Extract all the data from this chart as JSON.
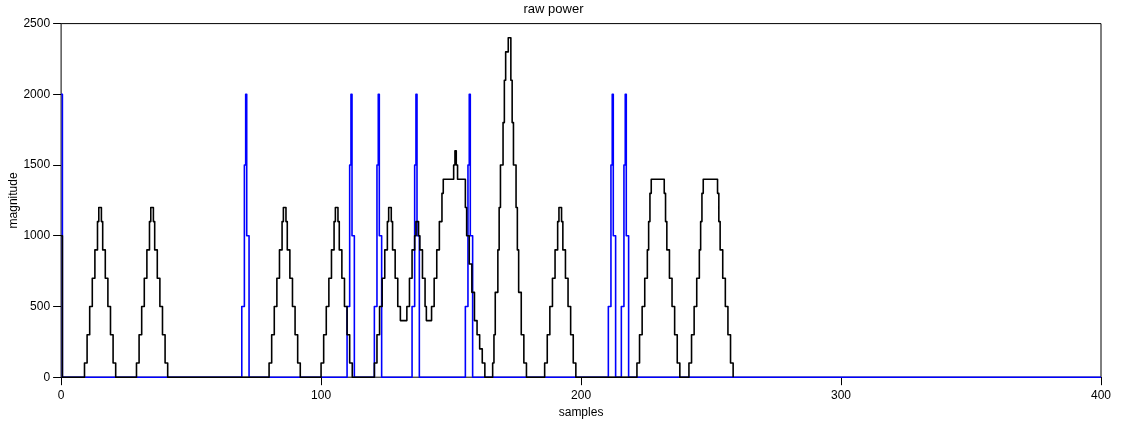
{
  "chart_data": {
    "type": "step",
    "title": "raw power",
    "xlabel": "samples",
    "ylabel": "magnitude",
    "xlim": [
      0,
      400
    ],
    "xticks": [
      0,
      100,
      200,
      300,
      400
    ],
    "ylim": [
      0,
      2500
    ],
    "yticks": [
      0,
      500,
      1000,
      1500,
      2000,
      2500
    ],
    "grid": false,
    "marker": "none",
    "series": [
      {
        "color": "#000000",
        "x": [
          0,
          0.5,
          9,
          10,
          11,
          12,
          13,
          14,
          14.5,
          15.5,
          16,
          17,
          18,
          19,
          20,
          21,
          29,
          30,
          31,
          32,
          33,
          34,
          34.5,
          35.5,
          36,
          37,
          38,
          39,
          40,
          41,
          80,
          81,
          82,
          83,
          84,
          85,
          85.5,
          86.5,
          87,
          88,
          89,
          90,
          91,
          92,
          100,
          101,
          102,
          103,
          104,
          105,
          105.5,
          106.5,
          107,
          108,
          109,
          110,
          111,
          112,
          120.5,
          121.5,
          122.5,
          123.5,
          124.5,
          125.5,
          126,
          127,
          127.5,
          128.5,
          129.5,
          130.5,
          133,
          134,
          135,
          136,
          136.5,
          137.5,
          138,
          139,
          140,
          140.5,
          142.5,
          143.5,
          144.5,
          145.5,
          146.5,
          147,
          151,
          151.5,
          152,
          152.5,
          155.5,
          156,
          157,
          158,
          159,
          160,
          161,
          162,
          163,
          166,
          166.5,
          167,
          168,
          168.5,
          169,
          170,
          170.5,
          171,
          172,
          173,
          173.5,
          174,
          175,
          175.5,
          176,
          177,
          178,
          179,
          186,
          187,
          188,
          189,
          190,
          191,
          191.5,
          192.5,
          193,
          194,
          195,
          196,
          197,
          198,
          221.5,
          222.5,
          223.5,
          224.5,
          225.5,
          226,
          226.5,
          227,
          232,
          232.5,
          233,
          234,
          235,
          236,
          237,
          238,
          241.5,
          242.5,
          243.5,
          244.5,
          245.5,
          246,
          246.5,
          247,
          252.5,
          253,
          253.5,
          254.5,
          255.5,
          256.5,
          257.5,
          258.5
        ],
        "values": [
          1000,
          0,
          100,
          300,
          500,
          700,
          900,
          1100,
          1200,
          1100,
          900,
          700,
          500,
          300,
          100,
          0,
          100,
          300,
          500,
          700,
          900,
          1100,
          1200,
          1100,
          900,
          700,
          500,
          300,
          100,
          0,
          100,
          300,
          500,
          700,
          900,
          1100,
          1200,
          1100,
          900,
          700,
          500,
          300,
          100,
          0,
          100,
          300,
          500,
          700,
          900,
          1100,
          1200,
          1100,
          900,
          700,
          500,
          300,
          100,
          0,
          100,
          300,
          500,
          700,
          900,
          1100,
          1200,
          1100,
          900,
          700,
          500,
          400,
          500,
          700,
          900,
          1000,
          1100,
          1000,
          900,
          700,
          500,
          400,
          500,
          700,
          900,
          1100,
          1300,
          1400,
          1500,
          1600,
          1500,
          1400,
          1200,
          1000,
          800,
          600,
          400,
          300,
          200,
          100,
          0,
          100,
          300,
          600,
          900,
          1200,
          1500,
          1800,
          2100,
          2300,
          2400,
          2100,
          1800,
          1500,
          1200,
          900,
          600,
          300,
          100,
          0,
          100,
          300,
          500,
          700,
          900,
          1100,
          1200,
          1100,
          900,
          700,
          500,
          300,
          100,
          0,
          100,
          300,
          500,
          700,
          900,
          1100,
          1300,
          1400,
          1300,
          1100,
          900,
          700,
          500,
          300,
          100,
          0,
          100,
          300,
          500,
          700,
          900,
          1100,
          1300,
          1400,
          1300,
          1100,
          900,
          700,
          500,
          300,
          100,
          0
        ]
      },
      {
        "color": "#0000ff",
        "x": [
          0,
          0.5,
          69.5,
          70.5,
          71,
          71.4,
          72.3,
          110,
          111,
          111.5,
          111.9,
          112.8,
          120.5,
          121.5,
          122,
          122.4,
          123.3,
          135,
          136,
          136.5,
          136.9,
          137.8,
          155.5,
          156.5,
          157,
          157.4,
          158.3,
          210.5,
          211.5,
          212,
          212.4,
          213.3,
          215.5,
          216.5,
          217,
          217.4,
          218.3,
          400
        ],
        "values": [
          2000,
          0,
          500,
          1500,
          2000,
          1000,
          0,
          500,
          1500,
          2000,
          1000,
          0,
          500,
          1500,
          2000,
          1000,
          0,
          500,
          1500,
          2000,
          1000,
          0,
          500,
          1500,
          2000,
          1000,
          0,
          500,
          1500,
          2000,
          1000,
          0,
          500,
          1500,
          2000,
          1000,
          0,
          0
        ]
      }
    ]
  }
}
